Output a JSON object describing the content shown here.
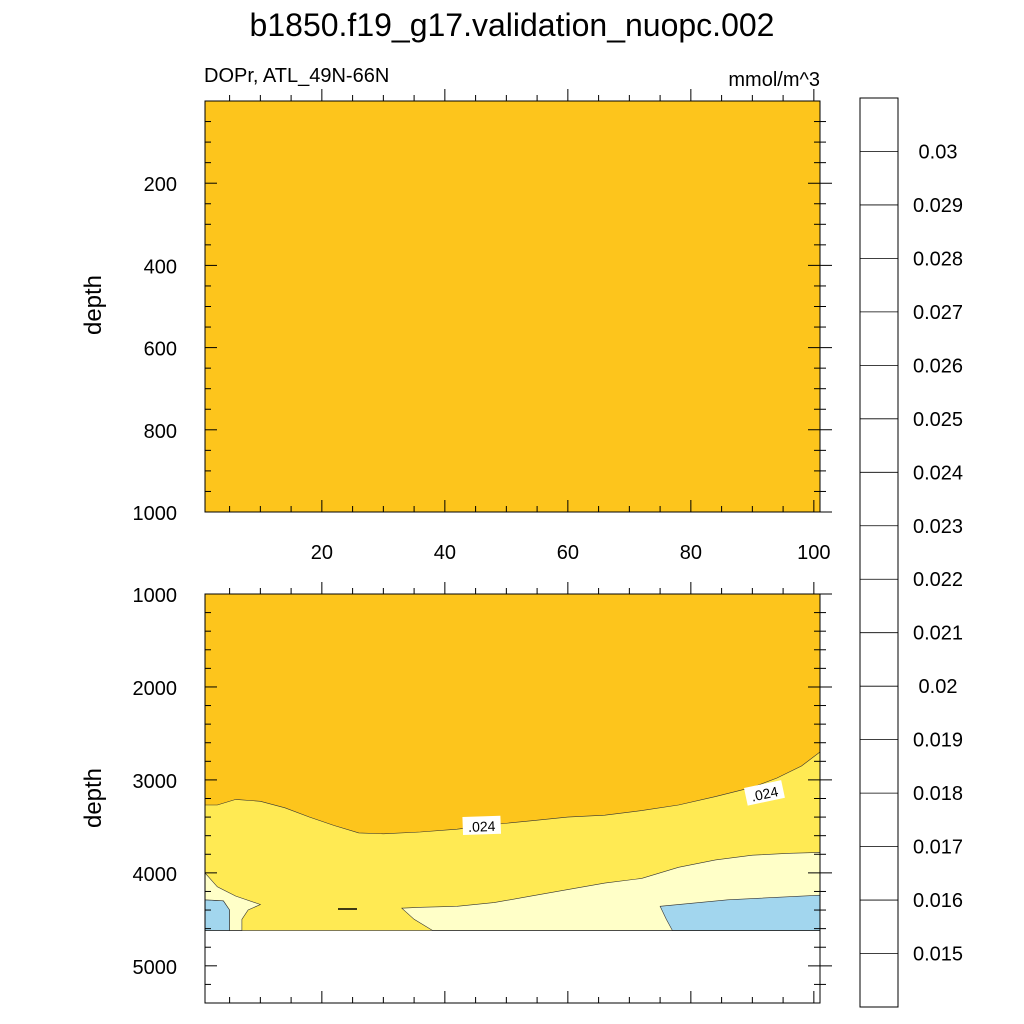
{
  "title": "b1850.f19_g17.validation_nuopc.002",
  "chart_data": [
    {
      "type": "heatmap",
      "panel": "upper",
      "left_label": "DOPr, ATL_49N-66N",
      "right_label": "mmol/m^3",
      "ylabel": "depth",
      "xlabel": "",
      "xlim": [
        1,
        101
      ],
      "ylim": [
        0,
        1000
      ],
      "y_reversed": true,
      "xticks": [
        20,
        40,
        60,
        80,
        100
      ],
      "yticks": [
        200,
        400,
        600,
        800,
        1000
      ],
      "value_range": [
        0.024,
        0.025
      ],
      "fill_color": "#FDC51C"
    },
    {
      "type": "heatmap",
      "panel": "lower",
      "ylabel": "depth",
      "xlim": [
        1,
        101
      ],
      "ylim": [
        1000,
        5400
      ],
      "y_reversed": true,
      "yticks": [
        1000,
        2000,
        3000,
        4000,
        5000
      ],
      "missing_below_depth": 4620,
      "contour_labels": [
        {
          "text": ".024",
          "x": 46,
          "depth": 3500
        },
        {
          "text": ".024",
          "x": 92,
          "depth": 3150
        }
      ],
      "regions": [
        {
          "range": "0.024-0.025",
          "color": "#FDC51C",
          "points": [
            [
              1,
              1000
            ],
            [
              101,
              1000
            ],
            [
              101,
              2700
            ],
            [
              98,
              2850
            ],
            [
              94,
              2980
            ],
            [
              90,
              3080
            ],
            [
              84,
              3180
            ],
            [
              78,
              3270
            ],
            [
              72,
              3330
            ],
            [
              66,
              3380
            ],
            [
              60,
              3400
            ],
            [
              54,
              3440
            ],
            [
              48,
              3480
            ],
            [
              42,
              3530
            ],
            [
              36,
              3560
            ],
            [
              30,
              3580
            ],
            [
              26,
              3570
            ],
            [
              22,
              3490
            ],
            [
              18,
              3400
            ],
            [
              14,
              3300
            ],
            [
              10,
              3230
            ],
            [
              6,
              3210
            ],
            [
              3,
              3270
            ],
            [
              1,
              3270
            ]
          ]
        },
        {
          "range": "0.022-0.023",
          "color": "#FFFFC8",
          "points": [
            [
              101,
              3780
            ],
            [
              96,
              3790
            ],
            [
              90,
              3810
            ],
            [
              84,
              3860
            ],
            [
              78,
              3940
            ],
            [
              72,
              4060
            ],
            [
              66,
              4110
            ],
            [
              60,
              4180
            ],
            [
              54,
              4250
            ],
            [
              48,
              4320
            ],
            [
              42,
              4360
            ],
            [
              36,
              4370
            ],
            [
              33,
              4380
            ],
            [
              35,
              4500
            ],
            [
              38,
              4620
            ],
            [
              101,
              4620
            ]
          ]
        },
        {
          "range": "0.021-0.022",
          "color": "#A2D6EE",
          "points": [
            [
              101,
              4240
            ],
            [
              86,
              4290
            ],
            [
              75,
              4360
            ],
            [
              76,
              4500
            ],
            [
              77,
              4620
            ],
            [
              101,
              4620
            ]
          ]
        },
        {
          "range": "0.021-0.022",
          "color": "#A2D6EE",
          "points": [
            [
              1,
              4290
            ],
            [
              4,
              4300
            ],
            [
              5,
              4400
            ],
            [
              5,
              4620
            ],
            [
              1,
              4620
            ]
          ]
        },
        {
          "range": "0.022-0.023",
          "color": "#FFFFC8",
          "points": [
            [
              1,
              4000
            ],
            [
              3,
              4150
            ],
            [
              6,
              4250
            ],
            [
              10,
              4340
            ],
            [
              8,
              4400
            ],
            [
              7,
              4500
            ],
            [
              7,
              4620
            ],
            [
              5,
              4620
            ],
            [
              5,
              4400
            ],
            [
              4,
              4300
            ],
            [
              1,
              4290
            ]
          ]
        }
      ]
    }
  ],
  "colorbar": {
    "labels": [
      "0.03",
      "0.029",
      "0.028",
      "0.027",
      "0.026",
      "0.025",
      "0.024",
      "0.023",
      "0.022",
      "0.021",
      "0.02",
      "0.019",
      "0.018",
      "0.017",
      "0.016",
      "0.015"
    ],
    "colors": [
      "#FFB3B5",
      "#D72626",
      "#E50000",
      "#FF1E00",
      "#FF6A00",
      "#FF9A00",
      "#FDC51C",
      "#FFEA53",
      "#FFFFC8",
      "#A2D6EE",
      "#4BC4F5",
      "#0AB1FF",
      "#1E8EFF",
      "#3A6DE5",
      "#2341E5",
      "#1E0BFF",
      "#7E22EE"
    ]
  }
}
